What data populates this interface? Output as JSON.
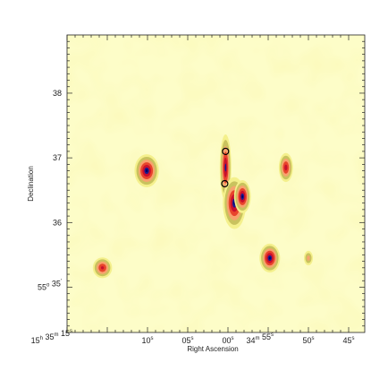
{
  "chart_data": {
    "type": "heatmap",
    "title": "",
    "xlabel": "Right Ascension",
    "ylabel": "Declination",
    "x_axis": {
      "direction": "decreasing-left-to-right",
      "tick_labels": [
        {
          "ra_sec": 20,
          "parts": [
            [
              "15",
              "h"
            ],
            [
              " 35",
              "m"
            ],
            [
              " 15",
              "s"
            ]
          ]
        },
        {
          "ra_sec": 10,
          "parts": [
            [
              "10",
              "s"
            ]
          ]
        },
        {
          "ra_sec": 5,
          "parts": [
            [
              "05",
              "s"
            ]
          ]
        },
        {
          "ra_sec": 0,
          "parts": [
            [
              "00",
              "s"
            ]
          ]
        },
        {
          "ra_sec": -5,
          "parts": [
            [
              "34",
              "m"
            ],
            [
              " 55",
              "s"
            ]
          ]
        },
        {
          "ra_sec": -10,
          "parts": [
            [
              "50",
              "s"
            ]
          ]
        },
        {
          "ra_sec": -15,
          "parts": [
            [
              "45",
              "s"
            ]
          ]
        }
      ],
      "range_ra_sec": [
        20,
        -17
      ]
    },
    "y_axis": {
      "tick_labels": [
        {
          "dec": 38,
          "parts": [
            [
              "38",
              ""
            ]
          ]
        },
        {
          "dec": 37,
          "parts": [
            [
              "37",
              ""
            ]
          ]
        },
        {
          "dec": 36,
          "parts": [
            [
              "36",
              ""
            ]
          ]
        },
        {
          "dec": 35,
          "parts": [
            [
              "55",
              "o"
            ],
            [
              " 35",
              "'"
            ]
          ]
        }
      ],
      "range_dec": [
        34.3,
        38.9
      ]
    },
    "colormap": {
      "background": "#fdfdc8",
      "levels": [
        "#f4f08c",
        "#c9c25e",
        "#f7a36e",
        "#e8442c",
        "#c8102e",
        "#1a1a8c",
        "#000066"
      ]
    },
    "sources": [
      {
        "ra_sec": 10.1,
        "dec": 36.8,
        "peak": 1.0,
        "sx": 0.95,
        "sy": 0.16
      },
      {
        "ra_sec": 0.3,
        "dec": 36.85,
        "peak": 0.78,
        "sx": 0.45,
        "sy": 0.32
      },
      {
        "ra_sec": -0.8,
        "dec": 36.3,
        "peak": 0.92,
        "sx": 0.9,
        "sy": 0.25
      },
      {
        "ra_sec": -1.8,
        "dec": 36.4,
        "peak": 1.0,
        "sx": 0.65,
        "sy": 0.16
      },
      {
        "ra_sec": -5.2,
        "dec": 35.45,
        "peak": 1.0,
        "sx": 0.8,
        "sy": 0.14
      },
      {
        "ra_sec": -7.2,
        "dec": 36.85,
        "peak": 0.6,
        "sx": 0.55,
        "sy": 0.14
      },
      {
        "ra_sec": 15.6,
        "dec": 35.3,
        "peak": 0.55,
        "sx": 0.75,
        "sy": 0.1
      },
      {
        "ra_sec": -10.0,
        "dec": 35.45,
        "peak": 0.22,
        "sx": 0.35,
        "sy": 0.07
      }
    ],
    "contours": [
      {
        "ra_sec": 0.3,
        "dec": 37.1
      },
      {
        "ra_sec": 0.4,
        "dec": 36.6
      }
    ],
    "grid": false,
    "legend": "none"
  }
}
